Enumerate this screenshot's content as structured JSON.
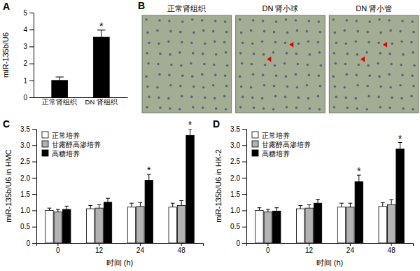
{
  "chart_data": [
    {
      "type": "bar",
      "panel": "A",
      "ylabel": "miR-135b/U6",
      "categories": [
        "正常肾组织",
        "DN 肾组织"
      ],
      "values": [
        1.0,
        3.55
      ],
      "errors": [
        0.2,
        0.42
      ],
      "color": "#000000",
      "ylim": [
        0,
        5
      ],
      "yticks": [
        0,
        1,
        2,
        3,
        4,
        5
      ],
      "annotations": [
        {
          "category": "DN 肾组织",
          "text": "*"
        }
      ]
    },
    {
      "type": "image",
      "panel": "B",
      "labels": [
        "正常肾组织",
        "DN 肾小球",
        "DN 肾小管"
      ]
    },
    {
      "type": "bar",
      "panel": "C",
      "ylabel": "miR-135b/U6 in HMC",
      "xlabel": "时间 (h)",
      "categories": [
        "0",
        "12",
        "24",
        "48"
      ],
      "series": [
        {
          "name": "正常培养",
          "color": "#ffffff",
          "values": [
            1.0,
            1.05,
            1.1,
            1.1
          ],
          "errors": [
            0.07,
            0.1,
            0.12,
            0.12
          ]
        },
        {
          "name": "甘露醇高渗培养",
          "color": "#b3b3b3",
          "values": [
            0.95,
            1.07,
            1.12,
            1.15
          ],
          "errors": [
            0.08,
            0.1,
            0.12,
            0.15
          ]
        },
        {
          "name": "高糖培养",
          "color": "#000000",
          "values": [
            1.03,
            1.25,
            1.92,
            3.3
          ],
          "errors": [
            0.1,
            0.12,
            0.18,
            0.2
          ]
        }
      ],
      "ylim": [
        0,
        3.5
      ],
      "yticks": [
        0,
        0.5,
        {
          "value": 1,
          "label": "1.0"
        },
        1.5,
        {
          "value": 2,
          "label": "2.0"
        },
        2.5,
        {
          "value": 3,
          "label": "3.0"
        },
        3.5
      ],
      "legend": "upper left",
      "annotations": [
        {
          "category": "24",
          "series": "高糖培养",
          "text": "*"
        },
        {
          "category": "48",
          "series": "高糖培养",
          "text": "*"
        }
      ]
    },
    {
      "type": "bar",
      "panel": "D",
      "ylabel": "miR-135b/U6 in HK-2",
      "xlabel": "时间 (h)",
      "categories": [
        "0",
        "12",
        "24",
        "48"
      ],
      "series": [
        {
          "name": "正常培养",
          "color": "#ffffff",
          "values": [
            1.0,
            1.05,
            1.1,
            1.12
          ],
          "errors": [
            0.08,
            0.1,
            0.12,
            0.12
          ]
        },
        {
          "name": "甘露醇高渗培养",
          "color": "#b3b3b3",
          "values": [
            0.95,
            1.07,
            1.1,
            1.18
          ],
          "errors": [
            0.08,
            0.1,
            0.12,
            0.15
          ]
        },
        {
          "name": "高糖培养",
          "color": "#000000",
          "values": [
            0.98,
            1.22,
            1.88,
            2.88
          ],
          "errors": [
            0.1,
            0.12,
            0.2,
            0.2
          ]
        }
      ],
      "ylim": [
        0,
        3.5
      ],
      "yticks": [
        0,
        0.5,
        {
          "value": 1,
          "label": "1.0"
        },
        1.5,
        {
          "value": 2,
          "label": "2.0"
        },
        2.5,
        {
          "value": 3,
          "label": "3.0"
        },
        3.5
      ],
      "legend": "upper left",
      "annotations": [
        {
          "category": "24",
          "series": "高糖培养",
          "text": "*"
        },
        {
          "category": "48",
          "series": "高糖培养",
          "text": "*"
        }
      ]
    }
  ]
}
